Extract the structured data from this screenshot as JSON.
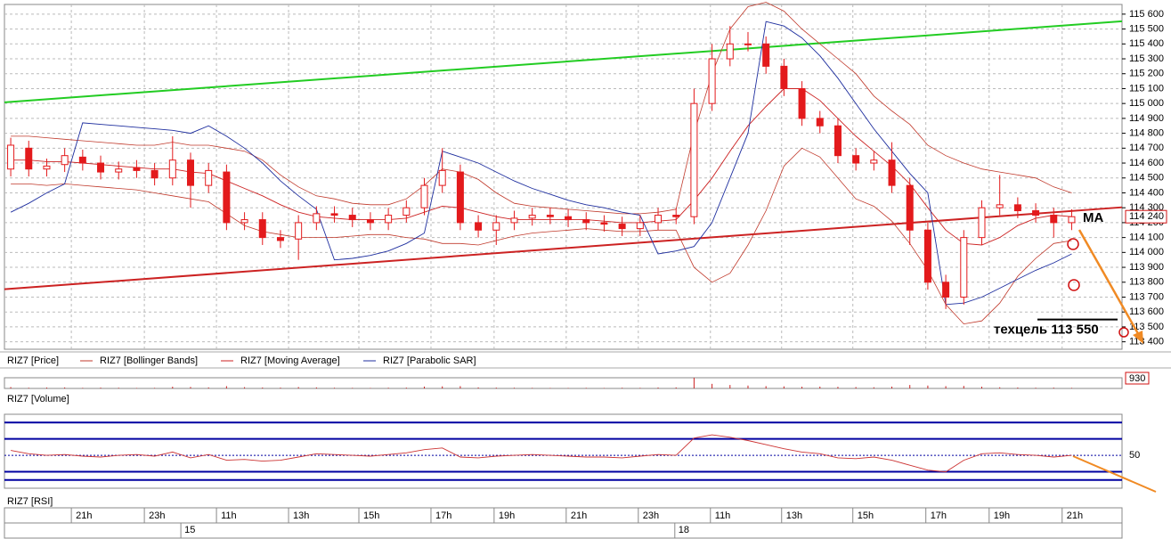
{
  "chart_data": [
    {
      "type": "candlestick",
      "series": [
        {
          "name": "RIZ7 [Price]",
          "color": "#e31a1c",
          "open": [
            114560,
            114700,
            114560,
            114590,
            114640,
            114600,
            114540,
            114570,
            114550,
            114500,
            114620,
            114450,
            114540,
            114200,
            114220,
            114100,
            114090,
            114200,
            114260,
            114250,
            114220,
            114200,
            114250,
            114300,
            114450,
            114540,
            114200,
            114150,
            114200,
            114230,
            114250,
            114240,
            114220,
            114200,
            114190,
            114160,
            114200,
            114250,
            114240,
            115000,
            115300,
            115400,
            115400,
            115250,
            115100,
            114900,
            114850,
            114650,
            114600,
            114620,
            114450,
            114150,
            113800,
            113700,
            114100,
            114300,
            114320,
            114280,
            114250,
            114200
          ],
          "high": [
            114770,
            114750,
            114630,
            114700,
            114690,
            114650,
            114610,
            114620,
            114600,
            114780,
            114670,
            114600,
            114590,
            114270,
            114270,
            114150,
            114250,
            114310,
            114310,
            114300,
            114270,
            114300,
            114350,
            114500,
            114700,
            114590,
            114250,
            114250,
            114280,
            114300,
            114300,
            114290,
            114270,
            114250,
            114240,
            114250,
            114300,
            114300,
            115100,
            115400,
            115520,
            115480,
            115450,
            115300,
            115150,
            114950,
            114900,
            114700,
            114680,
            114740,
            114500,
            114200,
            113850,
            114150,
            114350,
            114520,
            114370,
            114330,
            114300,
            114290
          ],
          "low": [
            114510,
            114510,
            114510,
            114540,
            114550,
            114490,
            114490,
            114500,
            114450,
            114450,
            114300,
            114400,
            114150,
            114150,
            114050,
            114030,
            113950,
            114150,
            114200,
            114170,
            114150,
            114150,
            114200,
            114250,
            114400,
            114150,
            114100,
            114050,
            114150,
            114180,
            114190,
            114170,
            114150,
            114140,
            114110,
            114110,
            114150,
            114190,
            114190,
            114950,
            115250,
            115350,
            115200,
            115050,
            114850,
            114800,
            114600,
            114550,
            114550,
            114400,
            114050,
            113750,
            113620,
            113650,
            114050,
            114250,
            114230,
            114200,
            114100,
            114150
          ],
          "close": [
            114720,
            114560,
            114580,
            114650,
            114600,
            114540,
            114560,
            114550,
            114500,
            114620,
            114450,
            114550,
            114200,
            114220,
            114100,
            114080,
            114200,
            114260,
            114250,
            114220,
            114200,
            114250,
            114300,
            114450,
            114550,
            114200,
            114150,
            114200,
            114230,
            114250,
            114240,
            114220,
            114200,
            114190,
            114160,
            114200,
            114250,
            114240,
            115000,
            115300,
            115400,
            115400,
            115250,
            115100,
            114900,
            114850,
            114650,
            114600,
            114620,
            114450,
            114150,
            113800,
            113700,
            114100,
            114300,
            114320,
            114280,
            114250,
            114200,
            114240
          ]
        },
        {
          "name": "RIZ7 [Bollinger Bands]",
          "color": "#c0392b",
          "upper": [
            114780,
            114780,
            114770,
            114760,
            114750,
            114740,
            114730,
            114720,
            114720,
            114740,
            114720,
            114720,
            114700,
            114680,
            114620,
            114520,
            114440,
            114380,
            114360,
            114330,
            114320,
            114320,
            114360,
            114450,
            114560,
            114540,
            114490,
            114400,
            114330,
            114310,
            114300,
            114290,
            114280,
            114270,
            114260,
            114260,
            114270,
            114290,
            114800,
            115200,
            115500,
            115650,
            115680,
            115620,
            115500,
            115400,
            115300,
            115200,
            115050,
            114950,
            114860,
            114720,
            114650,
            114600,
            114560,
            114540,
            114520,
            114500,
            114440,
            114400
          ],
          "lower": [
            114460,
            114460,
            114450,
            114460,
            114450,
            114440,
            114430,
            114420,
            114400,
            114380,
            114360,
            114340,
            114260,
            114180,
            114140,
            114120,
            114100,
            114100,
            114100,
            114110,
            114120,
            114120,
            114100,
            114090,
            114060,
            114060,
            114050,
            114080,
            114110,
            114130,
            114140,
            114150,
            114160,
            114150,
            114140,
            114140,
            114150,
            114150,
            113900,
            113800,
            113860,
            114050,
            114280,
            114580,
            114700,
            114640,
            114500,
            114360,
            114310,
            114210,
            114060,
            113880,
            113650,
            113520,
            113540,
            113660,
            113840,
            113960,
            114060,
            114080
          ]
        },
        {
          "name": "RIZ7 [Moving Average]",
          "color": "#cc2222",
          "values": [
            114620,
            114620,
            114610,
            114610,
            114600,
            114590,
            114580,
            114570,
            114560,
            114560,
            114540,
            114530,
            114480,
            114430,
            114380,
            114320,
            114270,
            114240,
            114230,
            114220,
            114220,
            114220,
            114230,
            114270,
            114310,
            114300,
            114270,
            114240,
            114220,
            114220,
            114220,
            114220,
            114220,
            114210,
            114200,
            114200,
            114210,
            114220,
            114350,
            114500,
            114680,
            114850,
            114980,
            115100,
            115100,
            115020,
            114900,
            114780,
            114680,
            114580,
            114460,
            114300,
            114150,
            114060,
            114050,
            114100,
            114180,
            114230,
            114250,
            114240
          ]
        },
        {
          "name": "RIZ7 [Parabolic SAR]",
          "color": "#1f2f9f",
          "values": [
            114270,
            114330,
            114400,
            114460,
            114870,
            114860,
            114850,
            114840,
            114830,
            114820,
            114800,
            114850,
            114780,
            114700,
            114600,
            114480,
            114380,
            114290,
            113950,
            113960,
            113980,
            114010,
            114060,
            114130,
            114680,
            114640,
            114600,
            114540,
            114480,
            114430,
            114390,
            114350,
            114320,
            114300,
            114270,
            114250,
            113990,
            114010,
            114040,
            114200,
            114500,
            114800,
            115550,
            115520,
            115440,
            115320,
            115170,
            115000,
            114830,
            114680,
            114530,
            114400,
            113650,
            113660,
            113700,
            113760,
            113820,
            113880,
            113930,
            113990
          ]
        }
      ],
      "xlim": [
        -0.35,
        61.8
      ],
      "ylim": [
        113350,
        115665
      ],
      "yticks": [
        {
          "value": 113400,
          "label": "113 400"
        },
        {
          "value": 113500,
          "label": "113 500"
        },
        {
          "value": 113600,
          "label": "113 600"
        },
        {
          "value": 113700,
          "label": "113 700"
        },
        {
          "value": 113800,
          "label": "113 800"
        },
        {
          "value": 113900,
          "label": "113 900"
        },
        {
          "value": 114000,
          "label": "114 000"
        },
        {
          "value": 114100,
          "label": "114 100"
        },
        {
          "value": 114200,
          "label": "114 200"
        },
        {
          "value": 114300,
          "label": "114 300"
        },
        {
          "value": 114400,
          "label": "114 400"
        },
        {
          "value": 114500,
          "label": "114 500"
        },
        {
          "value": 114600,
          "label": "114 600"
        },
        {
          "value": 114700,
          "label": "114 700"
        },
        {
          "value": 114800,
          "label": "114 800"
        },
        {
          "value": 114900,
          "label": "114 900"
        },
        {
          "value": 115000,
          "label": "115 000"
        },
        {
          "value": 115100,
          "label": "115 100"
        },
        {
          "value": 115200,
          "label": "115 200"
        },
        {
          "value": 115300,
          "label": "115 300"
        },
        {
          "value": 115400,
          "label": "115 400"
        },
        {
          "value": 115500,
          "label": "115 500"
        },
        {
          "value": 115600,
          "label": "115 600"
        }
      ],
      "grid": true,
      "last_price": {
        "value": 114240,
        "label": "114 240"
      },
      "trendlines": [
        {
          "color": "#22cc22",
          "x": [
            -0.35,
            61.8
          ],
          "y": [
            115008,
            115552
          ]
        },
        {
          "color": "#cc2222",
          "x": [
            -0.35,
            61.8
          ],
          "y": [
            113753,
            114303
          ]
        }
      ],
      "annotations": [
        {
          "text": "МА"
        },
        {
          "text": "техцель 113 550",
          "value": 113550
        }
      ]
    },
    {
      "type": "bar",
      "title": "RIZ7 [Volume]",
      "color": "#cc2222",
      "values": [
        120,
        60,
        80,
        90,
        50,
        70,
        60,
        40,
        50,
        150,
        130,
        90,
        200,
        110,
        80,
        70,
        120,
        90,
        60,
        50,
        40,
        60,
        70,
        160,
        180,
        200,
        90,
        70,
        60,
        50,
        40,
        40,
        50,
        40,
        60,
        50,
        80,
        90,
        930,
        400,
        300,
        250,
        200,
        180,
        150,
        160,
        140,
        120,
        100,
        160,
        300,
        250,
        200,
        220,
        150,
        100,
        80,
        60,
        70,
        50
      ],
      "ylim": [
        0,
        930
      ],
      "yticks": [
        930
      ]
    },
    {
      "type": "line",
      "title": "RIZ7 [RSI]",
      "color": "#cc3333",
      "values": [
        56,
        52,
        50,
        51,
        49,
        48,
        50,
        51,
        49,
        54,
        47,
        51,
        44,
        45,
        43,
        44,
        48,
        52,
        51,
        50,
        49,
        51,
        53,
        57,
        59,
        48,
        47,
        49,
        50,
        51,
        50,
        49,
        48,
        48,
        47,
        49,
        51,
        50,
        71,
        75,
        72,
        68,
        63,
        58,
        54,
        52,
        47,
        46,
        48,
        44,
        38,
        32,
        30,
        44,
        52,
        53,
        51,
        50,
        48,
        50
      ],
      "ylim": [
        10,
        100
      ],
      "yticks": [
        50
      ],
      "levels": [
        20,
        30,
        70,
        90
      ],
      "level_color": "#0000a0",
      "xlim": [
        -0.35,
        61.8
      ],
      "xticks": [
        {
          "value": 3.37,
          "label": "21h"
        },
        {
          "value": 7.43,
          "label": "23h"
        },
        {
          "value": 11.44,
          "label": "11h"
        },
        {
          "value": 15.45,
          "label": "13h"
        },
        {
          "value": 19.36,
          "label": "15h"
        },
        {
          "value": 23.37,
          "label": "17h"
        },
        {
          "value": 26.88,
          "label": "19h"
        },
        {
          "value": 30.89,
          "label": "21h"
        },
        {
          "value": 34.9,
          "label": "23h"
        },
        {
          "value": 38.91,
          "label": "11h"
        },
        {
          "value": 42.87,
          "label": "13h"
        },
        {
          "value": 46.83,
          "label": "15h"
        },
        {
          "value": 50.89,
          "label": "17h"
        },
        {
          "value": 54.41,
          "label": "19h"
        },
        {
          "value": 58.47,
          "label": "21h"
        }
      ],
      "day_ticks": [
        {
          "value": 9.46,
          "label": "15"
        },
        {
          "value": 36.93,
          "label": "18"
        }
      ]
    }
  ]
}
